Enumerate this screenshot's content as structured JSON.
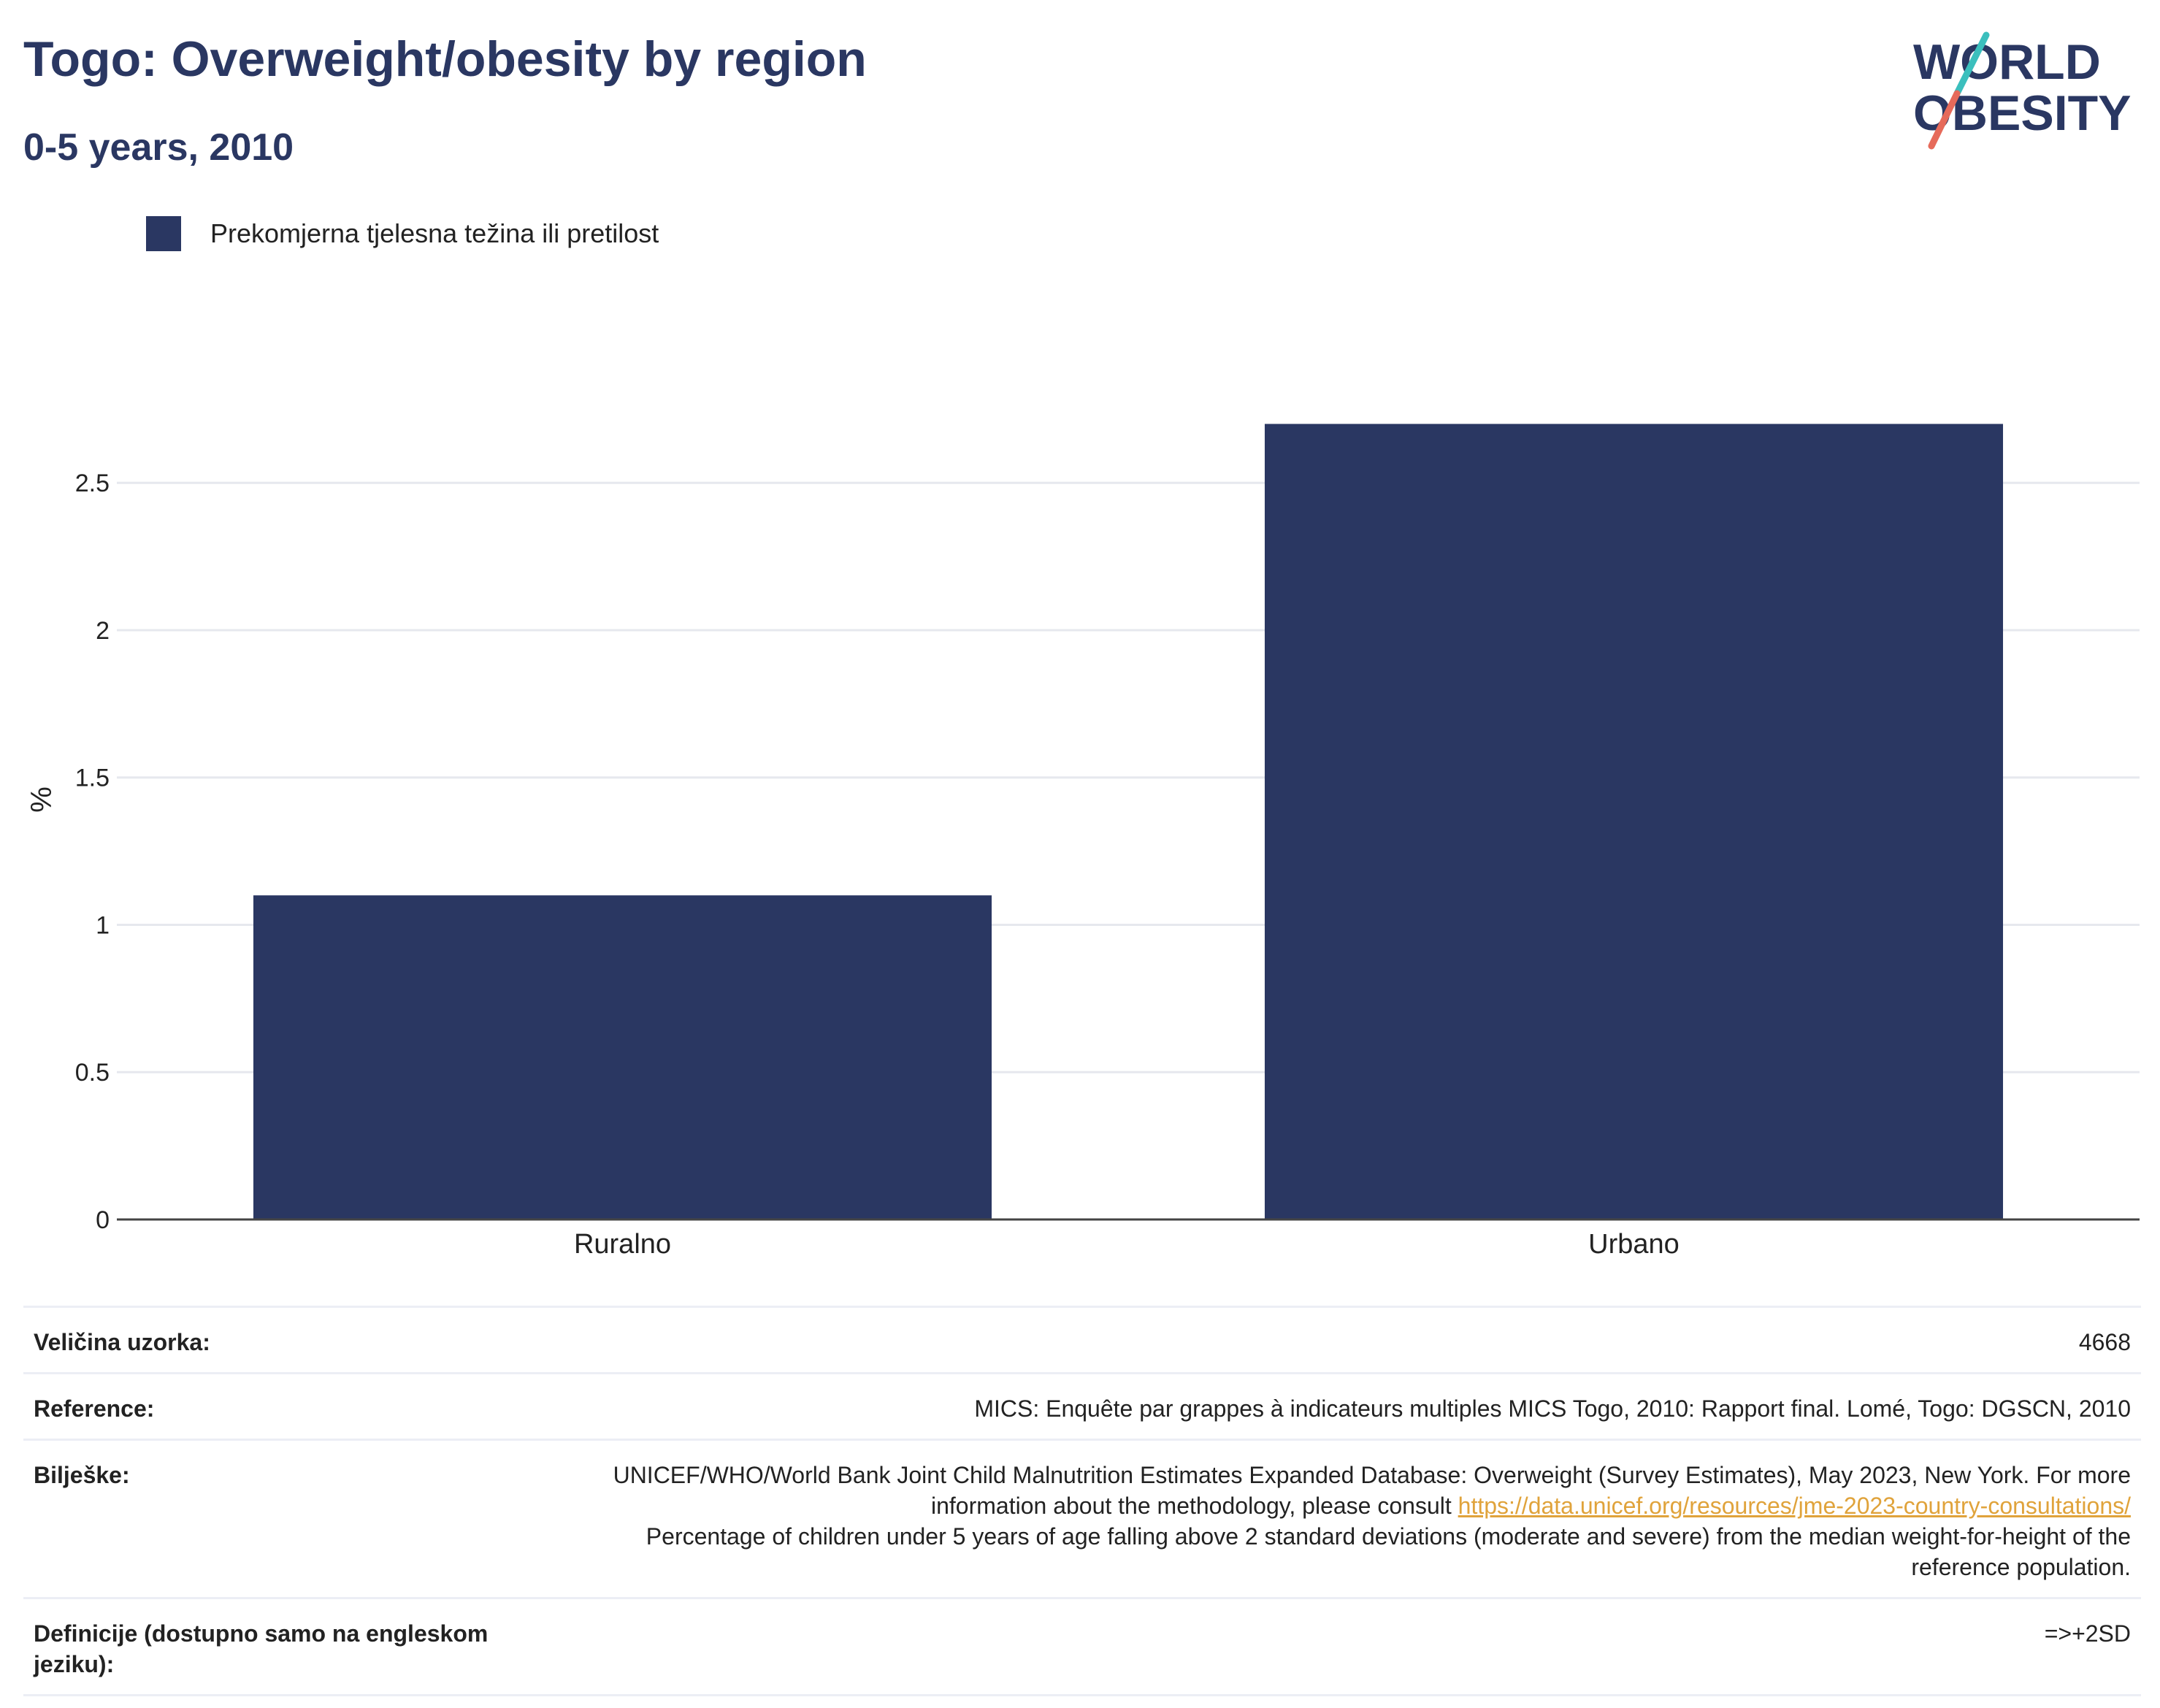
{
  "header": {
    "title": "Togo: Overweight/obesity by region",
    "subtitle": "0-5 years, 2010",
    "logo_line1": "WORLD",
    "logo_line2": "OBESITY"
  },
  "colors": {
    "bar": "#2a3762",
    "grid": "#e6e8ee",
    "axis": "#444444",
    "link": "#e0a33b",
    "logo_teal": "#3bbfbd",
    "logo_coral": "#e66a5a"
  },
  "chart_data": {
    "type": "bar",
    "categories": [
      "Ruralno",
      "Urbano"
    ],
    "series": [
      {
        "name": "Prekomjerna tjelesna težina ili pretilost",
        "values": [
          1.1,
          2.7
        ]
      }
    ],
    "ylabel": "%",
    "xlabel": "",
    "ylim": [
      0,
      2.85
    ],
    "yticks": [
      0,
      0.5,
      1,
      1.5,
      2,
      2.5
    ],
    "ytick_labels": [
      "0",
      "0.5",
      "1",
      "1.5",
      "2",
      "2.5"
    ],
    "grid": true,
    "legend": "top-left"
  },
  "info": {
    "sample_label": "Veličina uzorka:",
    "sample_value": "4668",
    "reference_label": "Reference:",
    "reference_value": "MICS: Enquête par grappes à indicateurs multiples MICS Togo, 2010: Rapport final. Lomé, Togo: DGSCN, 2010",
    "notes_label": "Bilješke:",
    "notes_text1": "UNICEF/WHO/World Bank Joint Child Malnutrition Estimates Expanded Database: Overweight (Survey Estimates), May 2023, New York. For more information about the methodology, please consult",
    "notes_link": "https://data.unicef.org/resources/jme-2023-country-consultations/",
    "notes_text2": "Percentage of children under 5 years of age falling above 2 standard deviations (moderate and severe) from the median weight-for-height of the reference population.",
    "definitions_label": "Definicije (dostupno samo na engleskom jeziku):",
    "definitions_value": "=>+2SD"
  }
}
